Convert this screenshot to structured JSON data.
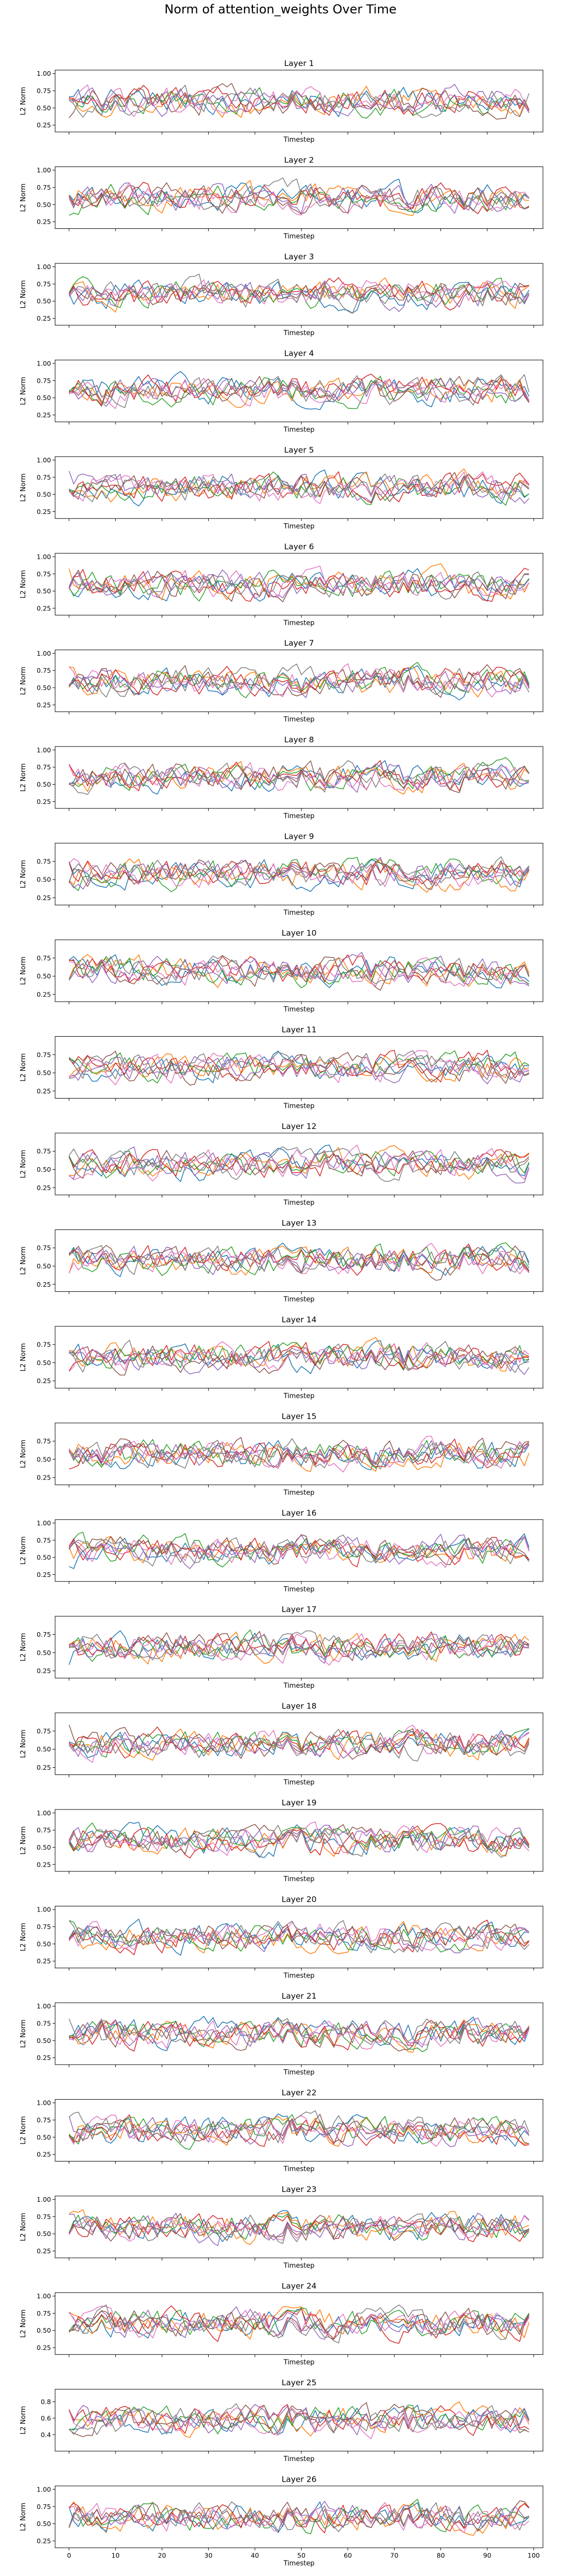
{
  "figure": {
    "title": "Norm of attention_weights Over Time"
  },
  "colors": [
    "#1f77b4",
    "#ff7f0e",
    "#2ca02c",
    "#d62728",
    "#9467bd",
    "#8c564b",
    "#e377c2",
    "#7f7f7f"
  ],
  "chart_data": {
    "type": "line",
    "xlabel": "Timestep",
    "ylabel": "L2 Norm",
    "xlim": [
      -3,
      102
    ],
    "xticks": [
      "0",
      "10",
      "20",
      "30",
      "40",
      "50",
      "60",
      "70",
      "80",
      "90",
      "100"
    ],
    "x": "timesteps 0-99",
    "grid": false,
    "layers": [
      {
        "title": "Layer 1",
        "ylim": [
          0.15,
          1.05
        ],
        "yticks": [
          "0.25",
          "0.50",
          "0.75",
          "1.00"
        ]
      },
      {
        "title": "Layer 2",
        "ylim": [
          0.15,
          1.05
        ],
        "yticks": [
          "0.25",
          "0.50",
          "0.75",
          "1.00"
        ]
      },
      {
        "title": "Layer 3",
        "ylim": [
          0.15,
          1.05
        ],
        "yticks": [
          "0.25",
          "0.50",
          "0.75",
          "1.00"
        ]
      },
      {
        "title": "Layer 4",
        "ylim": [
          0.15,
          1.05
        ],
        "yticks": [
          "0.25",
          "0.50",
          "0.75",
          "1.00"
        ]
      },
      {
        "title": "Layer 5",
        "ylim": [
          0.15,
          1.05
        ],
        "yticks": [
          "0.25",
          "0.50",
          "0.75",
          "1.00"
        ]
      },
      {
        "title": "Layer 6",
        "ylim": [
          0.15,
          1.05
        ],
        "yticks": [
          "0.25",
          "0.50",
          "0.75",
          "1.00"
        ]
      },
      {
        "title": "Layer 7",
        "ylim": [
          0.15,
          1.05
        ],
        "yticks": [
          "0.25",
          "0.50",
          "0.75",
          "1.00"
        ]
      },
      {
        "title": "Layer 8",
        "ylim": [
          0.15,
          1.05
        ],
        "yticks": [
          "0.25",
          "0.50",
          "0.75",
          "1.00"
        ]
      },
      {
        "title": "Layer 9",
        "ylim": [
          0.15,
          1.0
        ],
        "yticks": [
          "0.25",
          "0.50",
          "0.75"
        ]
      },
      {
        "title": "Layer 10",
        "ylim": [
          0.15,
          1.0
        ],
        "yticks": [
          "0.25",
          "0.50",
          "0.75"
        ]
      },
      {
        "title": "Layer 11",
        "ylim": [
          0.15,
          1.0
        ],
        "yticks": [
          "0.25",
          "0.50",
          "0.75"
        ]
      },
      {
        "title": "Layer 12",
        "ylim": [
          0.15,
          1.0
        ],
        "yticks": [
          "0.25",
          "0.50",
          "0.75"
        ]
      },
      {
        "title": "Layer 13",
        "ylim": [
          0.15,
          1.0
        ],
        "yticks": [
          "0.25",
          "0.50",
          "0.75"
        ]
      },
      {
        "title": "Layer 14",
        "ylim": [
          0.15,
          1.0
        ],
        "yticks": [
          "0.25",
          "0.50",
          "0.75"
        ]
      },
      {
        "title": "Layer 15",
        "ylim": [
          0.15,
          1.0
        ],
        "yticks": [
          "0.25",
          "0.50",
          "0.75"
        ]
      },
      {
        "title": "Layer 16",
        "ylim": [
          0.15,
          1.05
        ],
        "yticks": [
          "0.25",
          "0.50",
          "0.75",
          "1.00"
        ]
      },
      {
        "title": "Layer 17",
        "ylim": [
          0.15,
          1.0
        ],
        "yticks": [
          "0.25",
          "0.50",
          "0.75"
        ]
      },
      {
        "title": "Layer 18",
        "ylim": [
          0.15,
          1.0
        ],
        "yticks": [
          "0.25",
          "0.50",
          "0.75"
        ]
      },
      {
        "title": "Layer 19",
        "ylim": [
          0.15,
          1.05
        ],
        "yticks": [
          "0.25",
          "0.50",
          "0.75",
          "1.00"
        ]
      },
      {
        "title": "Layer 20",
        "ylim": [
          0.15,
          1.05
        ],
        "yticks": [
          "0.25",
          "0.50",
          "0.75",
          "1.00"
        ]
      },
      {
        "title": "Layer 21",
        "ylim": [
          0.15,
          1.05
        ],
        "yticks": [
          "0.25",
          "0.50",
          "0.75",
          "1.00"
        ]
      },
      {
        "title": "Layer 22",
        "ylim": [
          0.15,
          1.05
        ],
        "yticks": [
          "0.25",
          "0.50",
          "0.75",
          "1.00"
        ]
      },
      {
        "title": "Layer 23",
        "ylim": [
          0.15,
          1.05
        ],
        "yticks": [
          "0.25",
          "0.50",
          "0.75",
          "1.00"
        ]
      },
      {
        "title": "Layer 24",
        "ylim": [
          0.15,
          1.05
        ],
        "yticks": [
          "0.25",
          "0.50",
          "0.75",
          "1.00"
        ]
      },
      {
        "title": "Layer 25",
        "ylim": [
          0.2,
          0.95
        ],
        "yticks": [
          "0.4",
          "0.6",
          "0.8"
        ]
      },
      {
        "title": "Layer 26",
        "ylim": [
          0.15,
          1.05
        ],
        "yticks": [
          "0.25",
          "0.50",
          "0.75",
          "1.00"
        ]
      }
    ]
  }
}
